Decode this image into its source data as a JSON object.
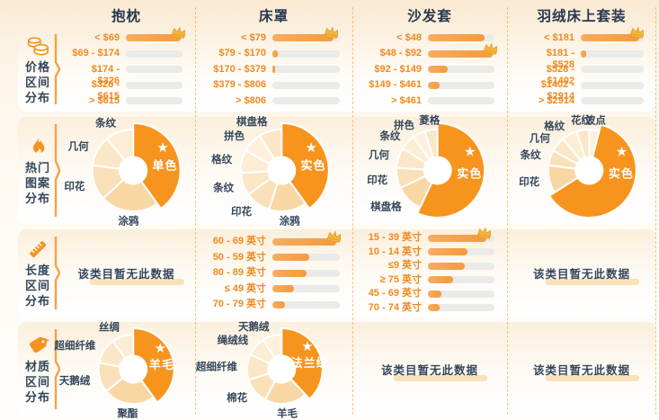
{
  "columns": [
    {
      "title": "抱枕"
    },
    {
      "title": "床罩"
    },
    {
      "title": "沙发套"
    },
    {
      "title": "羽绒床上套装"
    }
  ],
  "rows": [
    {
      "id": "price",
      "icon": "coins-icon",
      "label_lines": [
        "价格",
        "区间",
        "分布"
      ]
    },
    {
      "id": "pattern",
      "icon": "flame-icon",
      "label_lines": [
        "热门",
        "图案",
        "分布"
      ]
    },
    {
      "id": "length",
      "icon": "ruler-icon",
      "label_lines": [
        "长度",
        "区间",
        "分布"
      ]
    },
    {
      "id": "material",
      "icon": "tag-icon",
      "label_lines": [
        "材质",
        "区间",
        "分布"
      ]
    }
  ],
  "no_data_text": "该类目暂无此数据",
  "colors": {
    "accent_orange": "#F6921E",
    "bar_fill": "#F5A04E",
    "bar_track": "#EAEAE8",
    "bar_label_orange": "#F0891F",
    "title_navy": "#27374F",
    "donut_label_navy": "#33465A",
    "donut_main": "#F7941E",
    "crown_gold": "#F4B63B",
    "dashed_divider": "#F3A342",
    "nodata_underline": "#F9E2B9",
    "card_top_tint": "#FBEFDC"
  },
  "chart_data": {
    "note": "pct values are relative lengths/shares estimated from pixels; crown marks the top bucket",
    "rows": {
      "price": [
        {
          "category": "抱枕",
          "type": "bars",
          "items": [
            {
              "range": "< $69",
              "lines": [
                "< $69"
              ],
              "pct": 97,
              "crown": true
            },
            {
              "range": "$69 - $174",
              "lines": [
                "$69 - $174"
              ],
              "pct": 0
            },
            {
              "range": "$174 - $326",
              "lines": [
                "$174 -",
                "$326"
              ],
              "pct": 0
            },
            {
              "range": "$326 - $615",
              "lines": [
                "$326 -",
                "$615"
              ],
              "pct": 0
            },
            {
              "range": "> $615",
              "lines": [
                "> $615"
              ],
              "pct": 0
            }
          ]
        },
        {
          "category": "床罩",
          "type": "bars",
          "items": [
            {
              "range": "< $79",
              "lines": [
                "< $79"
              ],
              "pct": 90,
              "crown": true
            },
            {
              "range": "$79 - $170",
              "lines": [
                "$79 - $170"
              ],
              "pct": 8
            },
            {
              "range": "$170 - $379",
              "lines": [
                "$170 - $379"
              ],
              "pct": 4
            },
            {
              "range": "$379 - $806",
              "lines": [
                "$379 - $806"
              ],
              "pct": 0
            },
            {
              "range": "> $806",
              "lines": [
                "> $806"
              ],
              "pct": 0
            }
          ]
        },
        {
          "category": "沙发套",
          "type": "bars",
          "items": [
            {
              "range": "< $48",
              "lines": [
                "< $48"
              ],
              "pct": 85
            },
            {
              "range": "$48 - $92",
              "lines": [
                "$48 - $92"
              ],
              "pct": 97,
              "crown": true
            },
            {
              "range": "$92 - $149",
              "lines": [
                "$92 - $149"
              ],
              "pct": 30
            },
            {
              "range": "$149 - $461",
              "lines": [
                "$149 - $461"
              ],
              "pct": 18
            },
            {
              "range": "> $461",
              "lines": [
                "> $461"
              ],
              "pct": 0
            }
          ]
        },
        {
          "category": "羽绒床上套装",
          "type": "bars",
          "items": [
            {
              "range": "< $181",
              "lines": [
                "< $181"
              ],
              "pct": 93,
              "crown": true
            },
            {
              "range": "$181 - $528",
              "lines": [
                "$181 -",
                "$528"
              ],
              "pct": 9
            },
            {
              "range": "$528 - $1402",
              "lines": [
                "$528 -",
                "$1402"
              ],
              "pct": 0
            },
            {
              "range": "$1402 - $2914",
              "lines": [
                "$1402 -",
                "$2914"
              ],
              "pct": 0
            },
            {
              "range": "> $2914",
              "lines": [
                "> $2914"
              ],
              "pct": 0
            }
          ]
        }
      ],
      "pattern": [
        {
          "category": "抱枕",
          "type": "donut",
          "slices": [
            {
              "label": "单色",
              "pct": 40,
              "main": true,
              "color": "#F7941E"
            },
            {
              "label": "涂鸦",
              "pct": 23,
              "color": "#F8D7A4"
            },
            {
              "label": "印花",
              "pct": 14,
              "color": "#FAE0B8"
            },
            {
              "label": "几何",
              "pct": 12,
              "color": "#FBE7C7"
            },
            {
              "label": "条纹",
              "pct": 11,
              "color": "#FCEDD4"
            }
          ]
        },
        {
          "category": "床罩",
          "type": "donut",
          "slices": [
            {
              "label": "实色",
              "pct": 40,
              "main": true,
              "color": "#F7941E"
            },
            {
              "label": "涂鸦",
              "pct": 15,
              "color": "#F8D7A4"
            },
            {
              "label": "印花",
              "pct": 10,
              "color": "#FAE0B8"
            },
            {
              "label": "条纹",
              "pct": 9,
              "color": "#FBE7C7"
            },
            {
              "label": "格纹",
              "pct": 9,
              "color": "#FCEDD4"
            },
            {
              "label": "拼色",
              "pct": 8,
              "color": "#FDF1DE"
            },
            {
              "label": "棋盘格",
              "pct": 9,
              "color": "#FBE7C7"
            }
          ]
        },
        {
          "category": "沙发套",
          "type": "donut",
          "slices": [
            {
              "label": "实色",
              "pct": 57,
              "main": true,
              "color": "#F7941E"
            },
            {
              "label": "棋盘格",
              "pct": 11,
              "color": "#F8D7A4"
            },
            {
              "label": "印花",
              "pct": 8,
              "color": "#FAE0B8"
            },
            {
              "label": "几何",
              "pct": 8,
              "color": "#FBE7C7"
            },
            {
              "label": "条纹",
              "pct": 6,
              "color": "#FCEDD4"
            },
            {
              "label": "拼色",
              "pct": 5,
              "color": "#FDF1DE"
            },
            {
              "label": "菱格",
              "pct": 5,
              "color": "#FBE7C7"
            }
          ]
        },
        {
          "category": "羽绒床上套装",
          "type": "donut",
          "slices": [
            {
              "label": "波点",
              "pct": 4,
              "color": "#FDF1DE"
            },
            {
              "label": "实色",
              "pct": 62,
              "main": true,
              "color": "#F7941E"
            },
            {
              "label": "印花",
              "pct": 11,
              "color": "#F8D7A4"
            },
            {
              "label": "条纹",
              "pct": 6,
              "color": "#FAE0B8"
            },
            {
              "label": "几何",
              "pct": 6,
              "color": "#FBE7C7"
            },
            {
              "label": "格纹",
              "pct": 6,
              "color": "#FCEDD4"
            },
            {
              "label": "花纹",
              "pct": 5,
              "color": "#FBE7C7"
            }
          ]
        }
      ],
      "length": [
        {
          "category": "抱枕",
          "type": "none"
        },
        {
          "category": "床罩",
          "type": "bars",
          "items": [
            {
              "range": "60 - 69 英寸",
              "lines": [
                "60 - 69 英寸"
              ],
              "pct": 95,
              "crown": true
            },
            {
              "range": "50 - 59 英寸",
              "lines": [
                "50 - 59 英寸"
              ],
              "pct": 55
            },
            {
              "range": "80 - 89 英寸",
              "lines": [
                "80 - 89 英寸"
              ],
              "pct": 50
            },
            {
              "range": "≤ 49 英寸",
              "lines": [
                "≤ 49 英寸"
              ],
              "pct": 32
            },
            {
              "range": "70 - 79 英寸",
              "lines": [
                "70 - 79 英寸"
              ],
              "pct": 18
            }
          ]
        },
        {
          "category": "沙发套",
          "type": "bars",
          "items": [
            {
              "range": "15 - 39 英寸",
              "lines": [
                "15 - 39 英寸"
              ],
              "pct": 88,
              "crown": true
            },
            {
              "range": "10 - 14 英寸",
              "lines": [
                "10 - 14 英寸"
              ],
              "pct": 60
            },
            {
              "range": "≤9 英寸",
              "lines": [
                "≤9 英寸"
              ],
              "pct": 55
            },
            {
              "range": "≥ 75 英寸",
              "lines": [
                "≥ 75 英寸"
              ],
              "pct": 38
            },
            {
              "range": "45 - 69 英寸",
              "lines": [
                "45 - 69 英寸"
              ],
              "pct": 20
            },
            {
              "range": "70 - 74 英寸",
              "lines": [
                "70 - 74 英寸"
              ],
              "pct": 17
            }
          ]
        },
        {
          "category": "羽绒床上套装",
          "type": "none"
        }
      ],
      "material": [
        {
          "category": "抱枕",
          "type": "donut",
          "slices": [
            {
              "label": "羊毛",
              "pct": 40,
              "main": true,
              "color": "#F7941E"
            },
            {
              "label": "聚酯",
              "pct": 24,
              "color": "#F8D7A4"
            },
            {
              "label": "天鹅绒",
              "pct": 14,
              "color": "#FAE0B8"
            },
            {
              "label": "超细纤维",
              "pct": 12,
              "color": "#FBE7C7"
            },
            {
              "label": "丝绸",
              "pct": 10,
              "color": "#FCEDD4"
            }
          ]
        },
        {
          "category": "床罩",
          "type": "donut",
          "slices": [
            {
              "label": "法兰绒",
              "pct": 38,
              "main": true,
              "color": "#F7941E"
            },
            {
              "label": "羊毛",
              "pct": 20,
              "color": "#F8D7A4"
            },
            {
              "label": "棉花",
              "pct": 12,
              "color": "#FAE0B8"
            },
            {
              "label": "超细纤维",
              "pct": 12,
              "color": "#FBE7C7"
            },
            {
              "label": "绳绒线",
              "pct": 9,
              "color": "#FCEDD4"
            },
            {
              "label": "天鹅绒",
              "pct": 9,
              "color": "#FDF1DE"
            }
          ]
        },
        {
          "category": "沙发套",
          "type": "none"
        },
        {
          "category": "羽绒床上套装",
          "type": "none"
        }
      ]
    }
  }
}
